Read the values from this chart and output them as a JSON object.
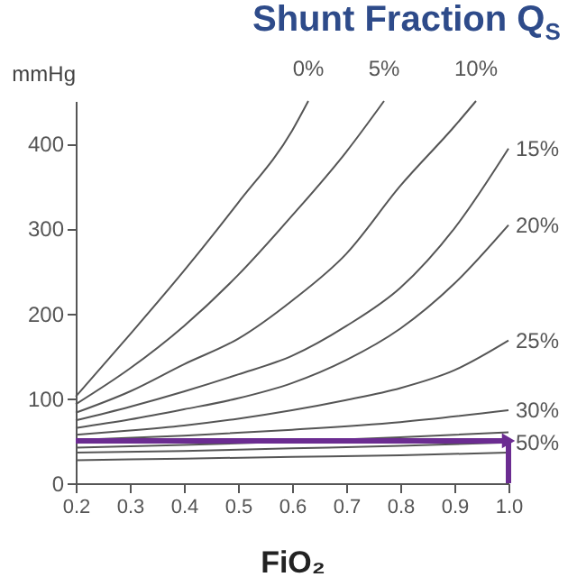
{
  "chart_data": {
    "type": "line",
    "title": "Shunt Fraction Q$_{S}$",
    "xlabel": "FiO₂",
    "ylabel": "mmHg",
    "xlim": [
      0.2,
      1.0
    ],
    "ylim": [
      0,
      450
    ],
    "xticks": [
      {
        "value": 0.2,
        "label": "0.2"
      },
      {
        "value": 0.3,
        "label": "0.3"
      },
      {
        "value": 0.4,
        "label": "0.4"
      },
      {
        "value": 0.5,
        "label": "0.5"
      },
      {
        "value": 0.6,
        "label": "0.6"
      },
      {
        "value": 0.7,
        "label": "0.7"
      },
      {
        "value": 0.8,
        "label": "0.8"
      },
      {
        "value": 0.9,
        "label": "0.9"
      },
      {
        "value": 1.0,
        "label": "1.0"
      }
    ],
    "yticks": [
      0,
      100,
      200,
      300,
      400
    ],
    "grid": false,
    "legend": false,
    "marker": "none",
    "line_style": "solid",
    "series": [
      {
        "name": "0%",
        "color": "#555555",
        "x": [
          0.2,
          0.3,
          0.4,
          0.5,
          0.6,
          0.63
        ],
        "values": [
          102,
          175,
          250,
          330,
          415,
          450
        ]
      },
      {
        "name": "5%",
        "color": "#555555",
        "x": [
          0.2,
          0.3,
          0.4,
          0.5,
          0.6,
          0.7,
          0.77
        ],
        "values": [
          93,
          135,
          185,
          245,
          315,
          390,
          450
        ]
      },
      {
        "name": "10%",
        "color": "#555555",
        "x": [
          0.2,
          0.3,
          0.4,
          0.5,
          0.6,
          0.7,
          0.8,
          0.9,
          0.94
        ],
        "values": [
          83,
          108,
          140,
          170,
          215,
          270,
          350,
          420,
          450
        ]
      },
      {
        "name": "15%",
        "color": "#555555",
        "x": [
          0.2,
          0.3,
          0.4,
          0.5,
          0.6,
          0.7,
          0.8,
          0.9,
          1.0
        ],
        "values": [
          74,
          90,
          108,
          128,
          150,
          185,
          230,
          300,
          394
        ]
      },
      {
        "name": "20%",
        "color": "#555555",
        "x": [
          0.2,
          0.3,
          0.4,
          0.5,
          0.6,
          0.7,
          0.8,
          0.9,
          1.0
        ],
        "values": [
          65,
          75,
          87,
          100,
          118,
          145,
          182,
          235,
          304
        ]
      },
      {
        "name": "25%",
        "color": "#555555",
        "x": [
          0.2,
          0.3,
          0.4,
          0.5,
          0.6,
          0.7,
          0.8,
          0.9,
          1.0
        ],
        "values": [
          57,
          62,
          68,
          76,
          86,
          98,
          112,
          133,
          168
        ]
      },
      {
        "name": "30%",
        "color": "#555555",
        "x": [
          0.2,
          0.4,
          0.6,
          0.8,
          1.0
        ],
        "values": [
          51,
          56,
          63,
          72,
          86
        ]
      },
      {
        "color": "#555555",
        "x": [
          0.2,
          0.4,
          0.6,
          0.8,
          1.0
        ],
        "values": [
          42,
          45,
          49,
          54,
          60
        ]
      },
      {
        "name": "50%",
        "color": "#555555",
        "x": [
          0.2,
          0.4,
          0.6,
          0.8,
          1.0
        ],
        "values": [
          36,
          38,
          41,
          44,
          48
        ]
      },
      {
        "color": "#555555",
        "x": [
          0.2,
          0.4,
          0.6,
          0.8,
          1.0
        ],
        "values": [
          27,
          29,
          31,
          33,
          36
        ]
      }
    ],
    "ref_lines": [
      {
        "axis": "y",
        "value": 50,
        "color": "#6b2c91"
      },
      {
        "axis": "x",
        "value": 1.0,
        "color": "#6b2c91"
      }
    ]
  }
}
